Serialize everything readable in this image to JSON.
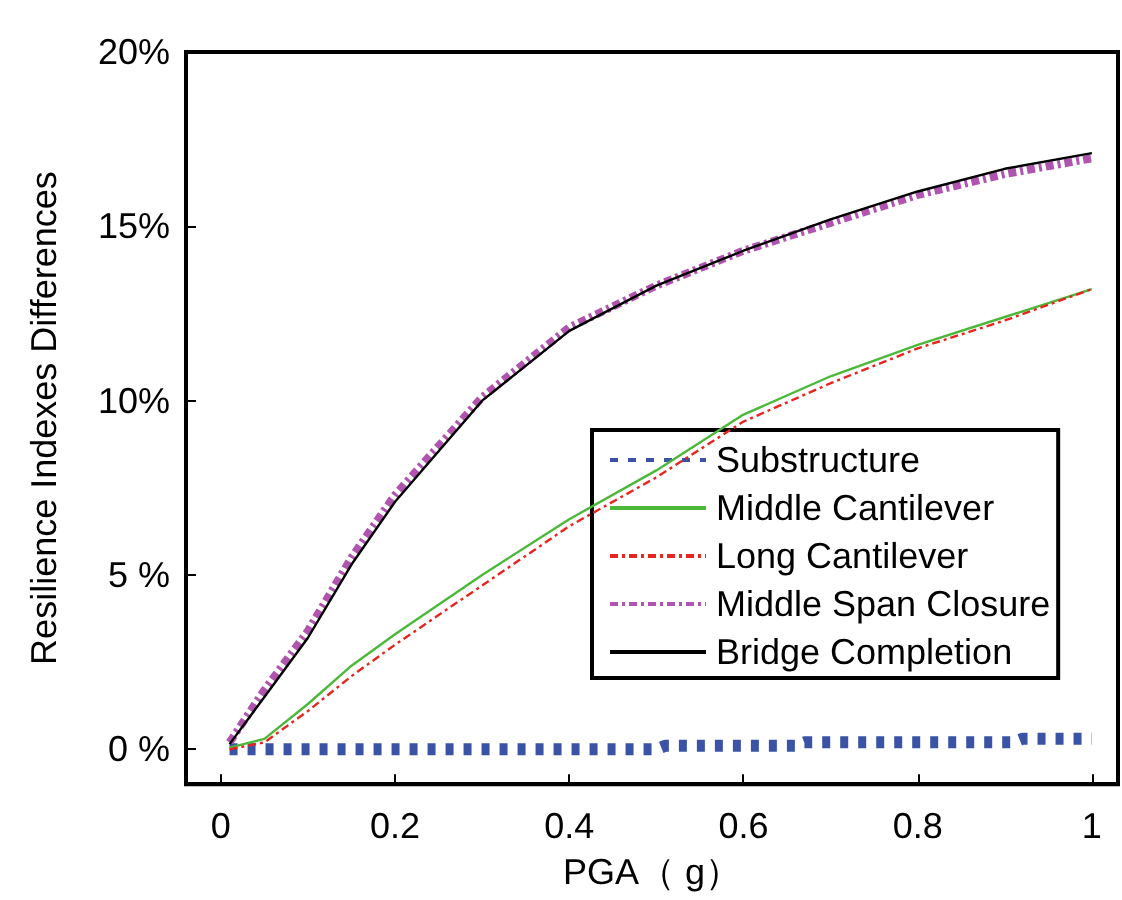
{
  "chart_data": {
    "type": "line",
    "xlabel": "PGA（ g）",
    "ylabel": "Resilience Indexes Differences",
    "xlim": [
      -0.04,
      1.03
    ],
    "xticks": [
      0,
      0.2,
      0.4,
      0.6,
      0.8,
      1
    ],
    "ylim": [
      -1,
      20
    ],
    "yticks": [
      {
        "value": 0,
        "label": "0 %"
      },
      {
        "value": 5,
        "label": "5 %"
      },
      {
        "value": 10,
        "label": "10%"
      },
      {
        "value": 15,
        "label": "15%"
      },
      {
        "value": 20,
        "label": "20%"
      }
    ],
    "grid": false,
    "legend": "bottom right",
    "marker": "none",
    "series": [
      {
        "name": "Substructure",
        "color": "#3a53a4",
        "line_style": "dotted",
        "x": [
          0.01,
          0.1,
          0.2,
          0.3,
          0.4,
          0.5,
          0.51,
          0.66,
          0.67,
          0.91,
          0.92,
          1.0
        ],
        "values": [
          0,
          0,
          0,
          0,
          0,
          0,
          0.1,
          0.1,
          0.2,
          0.2,
          0.3,
          0.3
        ]
      },
      {
        "name": "Middle Cantilever",
        "color": "#4cb83a",
        "line_style": "solid",
        "x": [
          0.01,
          0.05,
          0.1,
          0.15,
          0.2,
          0.3,
          0.4,
          0.5,
          0.6,
          0.7,
          0.8,
          0.9,
          1.0
        ],
        "values": [
          0.05,
          0.3,
          1.3,
          2.4,
          3.3,
          5.0,
          6.6,
          8.0,
          9.6,
          10.7,
          11.6,
          12.4,
          13.2
        ]
      },
      {
        "name": "Long Cantilever",
        "color": "#e8241f",
        "line_style": "dashed",
        "x": [
          0.01,
          0.05,
          0.1,
          0.15,
          0.2,
          0.3,
          0.4,
          0.5,
          0.6,
          0.7,
          0.8,
          0.9,
          1.0
        ],
        "values": [
          0,
          0.2,
          1.1,
          2.1,
          3.0,
          4.7,
          6.4,
          7.8,
          9.4,
          10.5,
          11.5,
          12.3,
          13.2
        ]
      },
      {
        "name": "Middle Span Closure",
        "color": "#b054b0",
        "line_style": "dashed",
        "x": [
          0.01,
          0.05,
          0.1,
          0.15,
          0.2,
          0.3,
          0.4,
          0.5,
          0.6,
          0.7,
          0.8,
          0.9,
          1.0
        ],
        "values": [
          0.2,
          1.7,
          3.4,
          5.5,
          7.3,
          10.1,
          12.1,
          13.3,
          14.3,
          15.1,
          15.9,
          16.5,
          16.95
        ]
      },
      {
        "name": "Bridge Completion",
        "color": "#000000",
        "line_style": "solid",
        "x": [
          0.01,
          0.05,
          0.1,
          0.15,
          0.2,
          0.3,
          0.4,
          0.5,
          0.6,
          0.7,
          0.8,
          0.9,
          1.0
        ],
        "values": [
          0.15,
          1.5,
          3.2,
          5.3,
          7.1,
          10.0,
          12.0,
          13.3,
          14.3,
          15.2,
          16.0,
          16.65,
          17.1
        ]
      }
    ]
  }
}
